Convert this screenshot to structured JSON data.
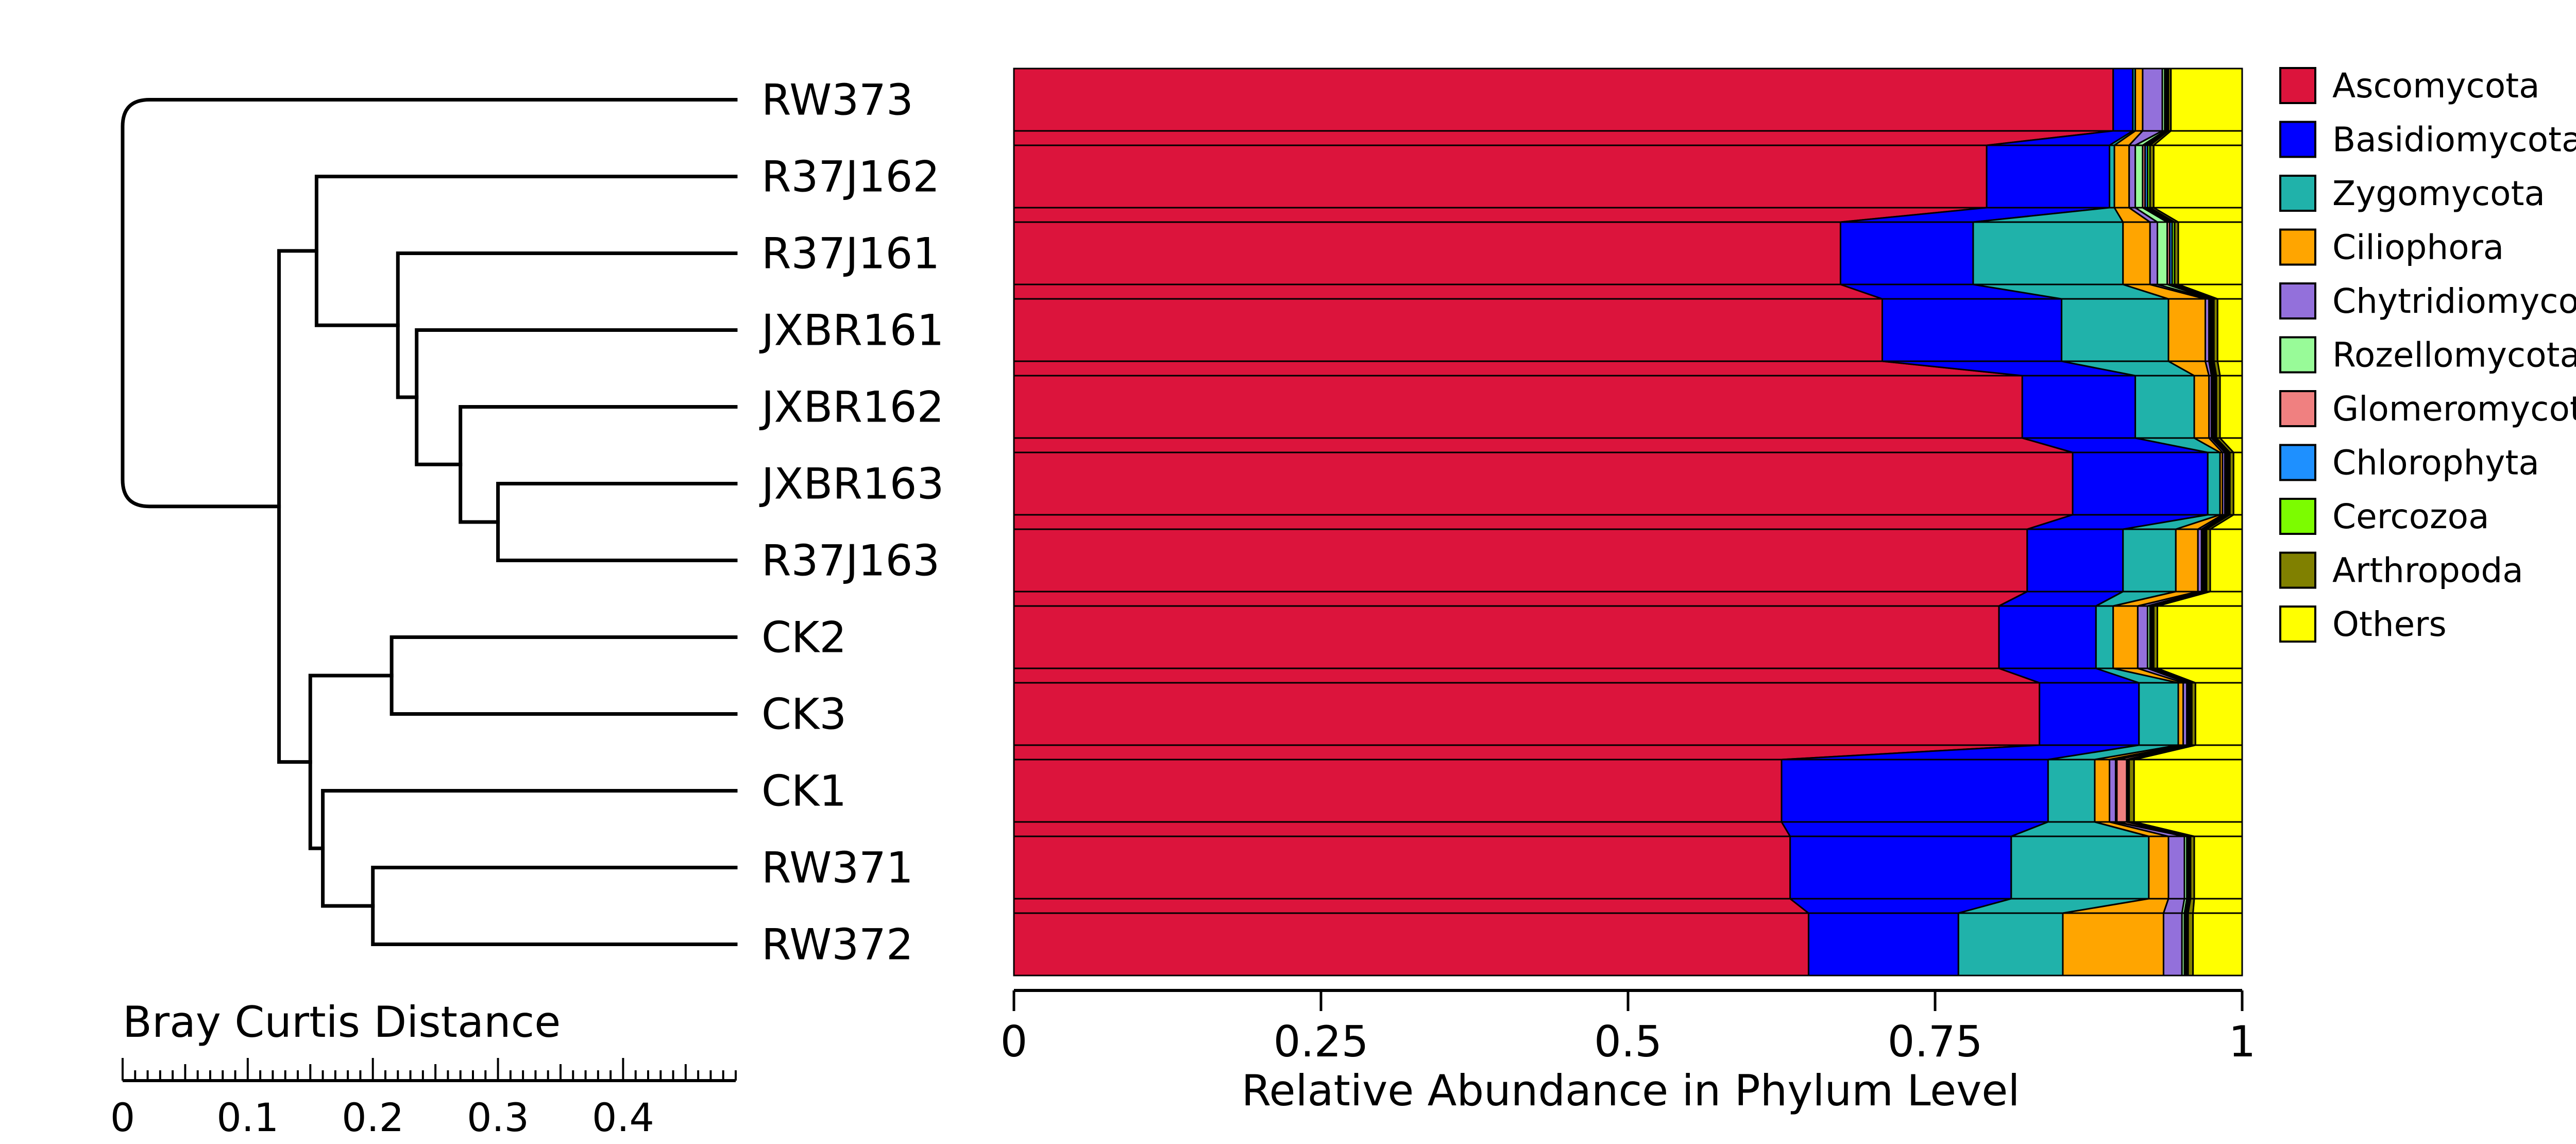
{
  "chart_data": {
    "type": "bar",
    "orientation": "horizontal",
    "stacked": true,
    "normalized": true,
    "xlabel": "Relative Abundance in Phylum Level",
    "xlim": [
      0,
      1
    ],
    "x_ticks": [
      "0",
      "0.25",
      "0.5",
      "0.75",
      "1"
    ],
    "grid": false,
    "legend_position": "right",
    "categories": [
      "RW373",
      "R37J162",
      "R37J161",
      "JXBR161",
      "JXBR162",
      "JXBR163",
      "R37J163",
      "CK2",
      "CK3",
      "CK1",
      "RW371",
      "RW372"
    ],
    "series": [
      {
        "name": "Ascomycota",
        "color": "#DC143C",
        "values": [
          0.895,
          0.792,
          0.673,
          0.707,
          0.821,
          0.862,
          0.825,
          0.802,
          0.835,
          0.625,
          0.632,
          0.647
        ]
      },
      {
        "name": "Basidiomycota",
        "color": "#0000FF",
        "values": [
          0.016,
          0.1,
          0.108,
          0.146,
          0.092,
          0.11,
          0.078,
          0.079,
          0.081,
          0.217,
          0.18,
          0.122
        ]
      },
      {
        "name": "Zygomycota",
        "color": "#20B2AA",
        "values": [
          0.002,
          0.004,
          0.122,
          0.087,
          0.048,
          0.01,
          0.043,
          0.014,
          0.032,
          0.038,
          0.112,
          0.085
        ]
      },
      {
        "name": "Ciliophora",
        "color": "#FFA500",
        "values": [
          0.006,
          0.012,
          0.022,
          0.03,
          0.012,
          0.002,
          0.018,
          0.02,
          0.004,
          0.012,
          0.016,
          0.082
        ]
      },
      {
        "name": "Chytridiomycota",
        "color": "#9370DB",
        "values": [
          0.016,
          0.005,
          0.006,
          0.003,
          0.002,
          0.002,
          0.003,
          0.008,
          0.003,
          0.005,
          0.013,
          0.015
        ]
      },
      {
        "name": "Rozellomycota",
        "color": "#98FB98",
        "values": [
          0.002,
          0.006,
          0.008,
          0.001,
          0.001,
          0.001,
          0.001,
          0.002,
          0.001,
          0.001,
          0.002,
          0.002
        ]
      },
      {
        "name": "Glomeromycota",
        "color": "#F08080",
        "values": [
          0.001,
          0.002,
          0.002,
          0.001,
          0.001,
          0.001,
          0.001,
          0.001,
          0.001,
          0.008,
          0.001,
          0.001
        ]
      },
      {
        "name": "Chlorophyta",
        "color": "#1E90FF",
        "values": [
          0.001,
          0.002,
          0.002,
          0.001,
          0.001,
          0.001,
          0.001,
          0.001,
          0.001,
          0.001,
          0.001,
          0.001
        ]
      },
      {
        "name": "Cercozoa",
        "color": "#7CFC00",
        "values": [
          0.001,
          0.002,
          0.002,
          0.001,
          0.001,
          0.001,
          0.001,
          0.001,
          0.001,
          0.001,
          0.001,
          0.001
        ]
      },
      {
        "name": "Arthropoda",
        "color": "#808000",
        "values": [
          0.002,
          0.003,
          0.003,
          0.003,
          0.003,
          0.003,
          0.003,
          0.003,
          0.003,
          0.004,
          0.003,
          0.004
        ]
      },
      {
        "name": "Others",
        "color": "#FFFF00",
        "values": [
          0.058,
          0.072,
          0.052,
          0.02,
          0.018,
          0.007,
          0.026,
          0.069,
          0.038,
          0.088,
          0.039,
          0.04
        ]
      }
    ],
    "dendrogram": {
      "scale_title": "Bray Curtis Distance",
      "scale_ticks": [
        0,
        0.1,
        0.2,
        0.3,
        0.4
      ],
      "scale_tick_labels": [
        "0",
        "0.1",
        "0.2",
        "0.3",
        "0.4"
      ],
      "scale_max": 0.49,
      "scale_minor_step": 0.01,
      "scale_mid_step": 0.05,
      "merges": [
        {
          "left": "JXBR163",
          "right": "R37J163",
          "height": 0.3
        },
        {
          "left": "JXBR162",
          "right": 0,
          "height": 0.27
        },
        {
          "left": "JXBR161",
          "right": 1,
          "height": 0.235
        },
        {
          "left": "R37J161",
          "right": 2,
          "height": 0.22
        },
        {
          "left": "R37J162",
          "right": 3,
          "height": 0.155
        },
        {
          "left": "CK2",
          "right": "CK3",
          "height": 0.215
        },
        {
          "left": "RW371",
          "right": "RW372",
          "height": 0.2
        },
        {
          "left": "CK1",
          "right": 6,
          "height": 0.16
        },
        {
          "left": 5,
          "right": 7,
          "height": 0.15
        },
        {
          "left": 4,
          "right": 8,
          "height": 0.125
        },
        {
          "left": "RW373",
          "right": 9,
          "height": 0.0
        }
      ]
    }
  }
}
